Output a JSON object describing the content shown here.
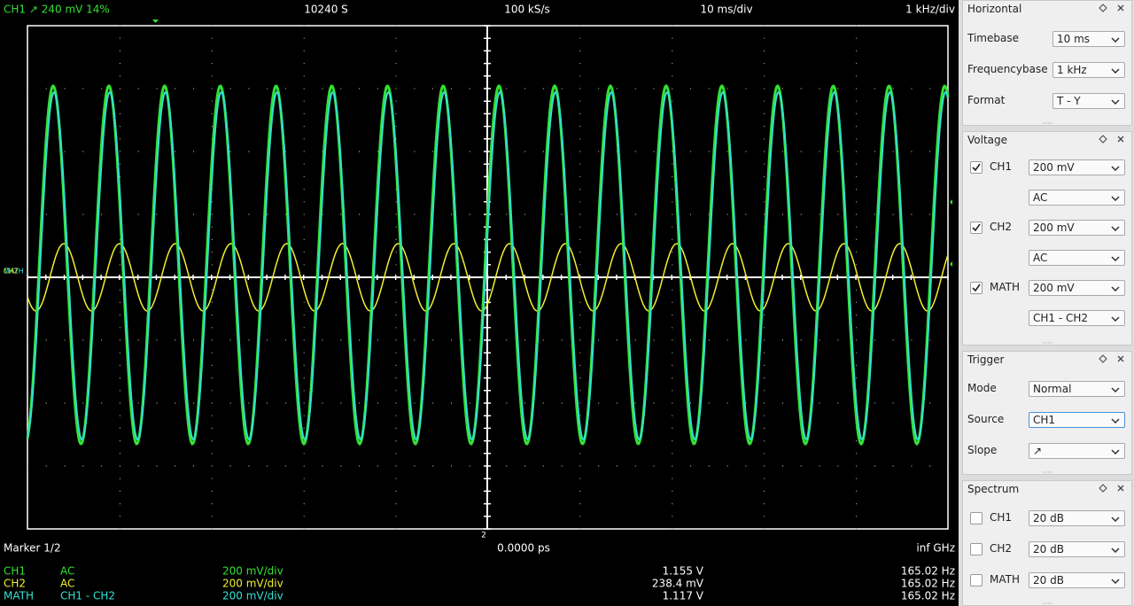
{
  "status_bar": {
    "trigger": "CH1  ↗  240 mV  14%",
    "samples": "10240 S",
    "samplerate": "100 kS/s",
    "timebase": "10 ms/div",
    "frequencybase": "1 kHz/div"
  },
  "scope": {
    "channel_markers": [
      "MATH",
      "CH2"
    ],
    "marker_label": "2"
  },
  "marker_bar": {
    "title": "Marker 1/2",
    "time": "0.0000 ps",
    "frequency": "inf GHz"
  },
  "channels": [
    {
      "name": "CH1",
      "coupling": "AC",
      "scale": "200 mV/div",
      "voltage": "1.155 V",
      "frequency": "165.02 Hz",
      "color": "#33e133"
    },
    {
      "name": "CH2",
      "coupling": "AC",
      "scale": "200 mV/div",
      "voltage": "238.4 mV",
      "frequency": "165.02 Hz",
      "color": "#f0f030"
    },
    {
      "name": "MATH",
      "coupling": "CH1 - CH2",
      "scale": "200 mV/div",
      "voltage": "1.117 V",
      "frequency": "165.02 Hz",
      "color": "#33e1d2"
    }
  ],
  "panel": {
    "horizontal": {
      "title": "Horizontal",
      "rows": [
        {
          "label": "Timebase",
          "value": "10 ms"
        },
        {
          "label": "Frequencybase",
          "value": "1 kHz"
        },
        {
          "label": "Format",
          "value": "T - Y"
        }
      ]
    },
    "voltage": {
      "title": "Voltage",
      "rows": [
        {
          "label": "CH1",
          "checked": true,
          "value": "200 mV",
          "mode": "AC"
        },
        {
          "label": "CH2",
          "checked": true,
          "value": "200 mV",
          "mode": "AC"
        },
        {
          "label": "MATH",
          "checked": true,
          "value": "200 mV",
          "mode": "CH1 - CH2"
        }
      ]
    },
    "trigger": {
      "title": "Trigger",
      "rows": [
        {
          "label": "Mode",
          "value": "Normal"
        },
        {
          "label": "Source",
          "value": "CH1"
        },
        {
          "label": "Slope",
          "value": "↗"
        }
      ]
    },
    "spectrum": {
      "title": "Spectrum",
      "rows": [
        {
          "label": "CH1",
          "checked": false,
          "value": "20 dB"
        },
        {
          "label": "CH2",
          "checked": false,
          "value": "20 dB"
        },
        {
          "label": "MATH",
          "checked": false,
          "value": "20 dB"
        }
      ]
    }
  }
}
